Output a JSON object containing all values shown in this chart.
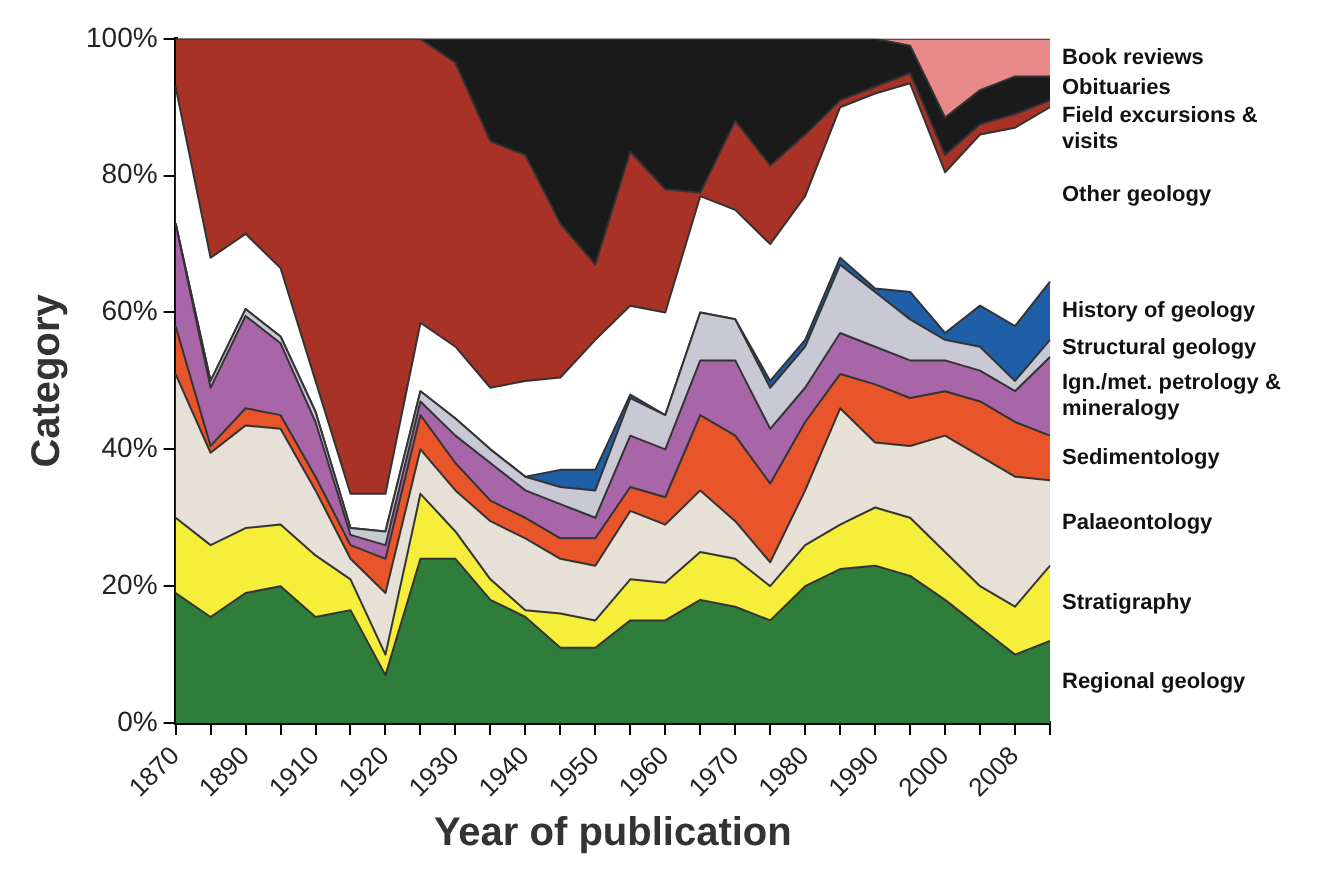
{
  "chart_data": {
    "type": "area",
    "stacked": true,
    "legend": "right",
    "xlabel": "Year of publication",
    "ylabel": "Category",
    "categories": [
      "1870",
      null,
      "1890",
      null,
      "1910",
      null,
      "1920",
      null,
      "1930",
      null,
      "1940",
      null,
      "1950",
      null,
      "1960",
      null,
      "1970",
      null,
      "1980",
      null,
      "1990",
      null,
      "2000",
      null,
      "2008",
      null
    ],
    "ylim": [
      0,
      100
    ],
    "yticks": [
      {
        "value": 0,
        "label": "0%"
      },
      {
        "value": 20,
        "label": "20%"
      },
      {
        "value": 40,
        "label": "40%"
      },
      {
        "value": 60,
        "label": "60%"
      },
      {
        "value": 80,
        "label": "80%"
      },
      {
        "value": 100,
        "label": "100%"
      }
    ],
    "series": [
      {
        "name": "Regional geology",
        "color": "#2e7d3a",
        "values": [
          19,
          15.5,
          19,
          20,
          15.5,
          16.5,
          7,
          24,
          24,
          18,
          15.5,
          11,
          11,
          15,
          15,
          18,
          17,
          15,
          20,
          22.5,
          23,
          21.5,
          18,
          14,
          10,
          12
        ]
      },
      {
        "name": "Stratigraphy",
        "color": "#f5ee3a",
        "values": [
          11,
          10.5,
          9.5,
          9,
          9,
          4.5,
          3,
          9.5,
          4,
          3,
          1,
          5,
          4,
          6,
          5.5,
          7,
          7,
          5,
          6,
          6.5,
          8.5,
          8.5,
          7,
          6,
          7,
          11
        ]
      },
      {
        "name": "Palaeontology",
        "color": "#e6e0d6",
        "values": [
          21,
          13.5,
          15,
          14,
          9.5,
          3,
          9,
          6.5,
          6,
          8.5,
          10.5,
          8,
          8,
          10,
          8.5,
          9,
          5.5,
          3.5,
          8,
          17,
          9.5,
          10.5,
          17,
          19,
          19,
          12.5
        ]
      },
      {
        "name": "Sedimentology",
        "color": "#e8552a",
        "values": [
          7,
          1,
          2.5,
          2,
          2,
          2,
          5,
          5,
          4,
          3,
          3,
          3,
          4,
          3.5,
          4,
          11,
          12.5,
          11.5,
          10,
          5,
          8.5,
          7,
          6.5,
          8,
          8,
          6.5
        ]
      },
      {
        "name": "Ign./met. petrology & mineralogy",
        "color": "#a865a8",
        "values": [
          15,
          8.5,
          13.5,
          10.5,
          8,
          1.5,
          2,
          2,
          4,
          5.5,
          4,
          5,
          3,
          7.5,
          7,
          8,
          11,
          8,
          5,
          6,
          5.5,
          5.5,
          4.5,
          4.5,
          4.5,
          11.5
        ]
      },
      {
        "name": "Structural geology",
        "color": "#c9c9d6",
        "values": [
          0,
          1,
          1,
          1,
          1.5,
          1,
          2,
          1.5,
          2.5,
          2,
          2,
          2.5,
          4,
          5.5,
          5,
          7,
          6,
          6,
          6,
          10,
          8,
          6,
          3,
          3.5,
          1.5,
          2.5
        ]
      },
      {
        "name": "History of geology",
        "color": "#1f5fa8",
        "values": [
          0,
          0,
          0,
          0,
          0,
          0,
          0,
          0,
          0,
          0,
          0,
          2.5,
          3,
          0.5,
          0,
          0,
          0,
          1,
          1,
          1,
          0.5,
          4,
          1,
          6,
          8,
          8.5
        ]
      },
      {
        "name": "Other geology",
        "color": "#ffffff",
        "values": [
          20,
          18,
          11,
          10,
          4.5,
          5,
          5.5,
          10,
          10.5,
          9,
          14,
          13.5,
          19,
          13,
          15,
          17,
          16,
          20,
          21,
          22,
          28.5,
          30.5,
          23.5,
          25,
          29,
          25.5
        ]
      },
      {
        "name": "Field excursions & visits",
        "color": "#a93226",
        "values": [
          7,
          32,
          28.5,
          33.5,
          50,
          66.5,
          66.5,
          41.5,
          41.5,
          36,
          33,
          22.5,
          11,
          22.5,
          18,
          0.5,
          13,
          11.5,
          9,
          1,
          1,
          1.5,
          2.5,
          1.5,
          2,
          1
        ]
      },
      {
        "name": "Obituaries",
        "color": "#1a1a1a",
        "values": [
          0,
          0,
          0,
          0,
          0,
          0,
          0,
          0,
          3.5,
          15,
          17,
          27,
          33,
          16.5,
          22,
          22.5,
          12,
          18.5,
          14,
          9,
          7,
          4,
          5.5,
          5,
          5.5,
          3.5
        ]
      },
      {
        "name": "Book reviews",
        "color": "#e88a8a",
        "values": [
          0,
          0,
          0,
          0,
          0,
          0,
          0,
          0,
          0,
          0,
          0,
          0,
          0,
          0,
          0,
          0,
          0,
          0,
          0,
          0,
          0,
          1,
          11.5,
          7.5,
          5.5,
          5.5
        ]
      }
    ]
  }
}
